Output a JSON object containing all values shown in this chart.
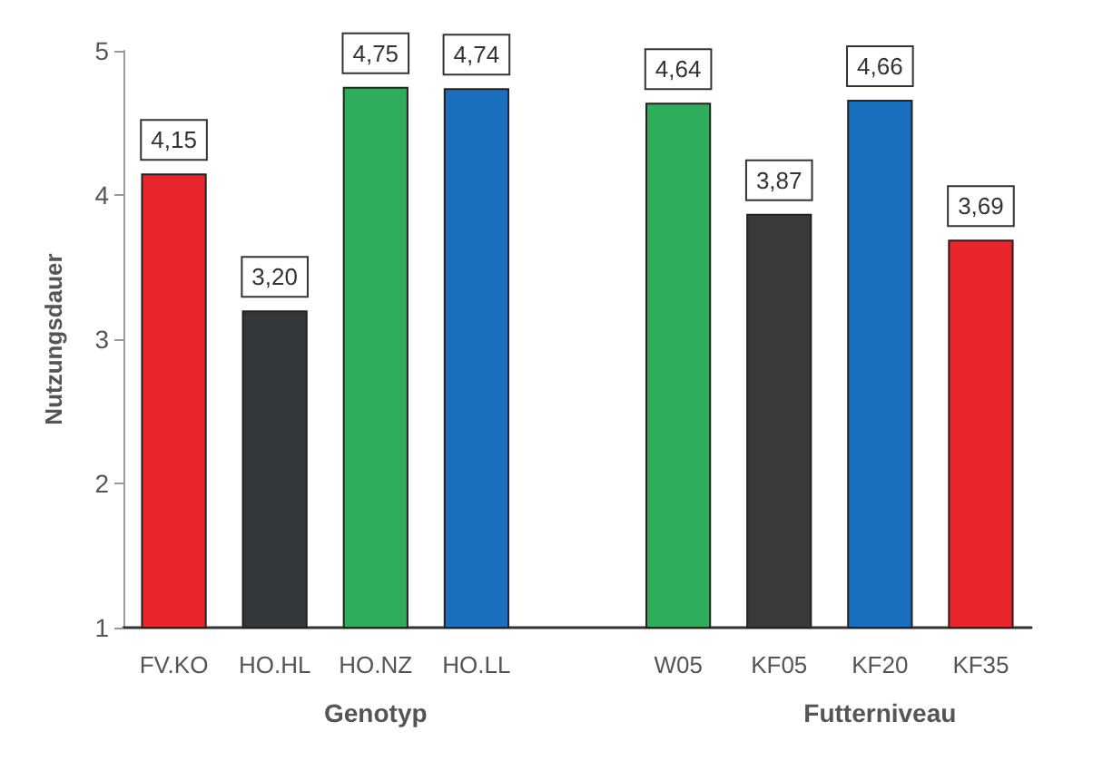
{
  "chart_data": {
    "type": "bar",
    "ylabel": "Nutzungsdauer",
    "categories": [
      "FV.KO",
      "HO.HL",
      "HO.NZ",
      "HO.LL",
      null,
      "W05",
      "KF05",
      "KF20",
      "KF35"
    ],
    "values": [
      4.15,
      3.2,
      4.75,
      4.74,
      null,
      4.64,
      3.87,
      4.66,
      3.69
    ],
    "value_labels": [
      "4,15",
      "3,20",
      "4,75",
      "4,74",
      null,
      "4,64",
      "3,87",
      "4,66",
      "3,69"
    ],
    "colors": [
      "#e8262b",
      "#33373a",
      "#2eae5a",
      "#1a6fbf",
      "#ffffff",
      "#2eae5a",
      "#3a3a3a",
      "#1a6fbf",
      "#e8262b"
    ],
    "annotations": [
      "Genotyp",
      "Futterniveau"
    ],
    "ylim": [
      1,
      5
    ],
    "yticks": [
      1,
      2,
      3,
      4,
      5
    ],
    "grid": false
  }
}
